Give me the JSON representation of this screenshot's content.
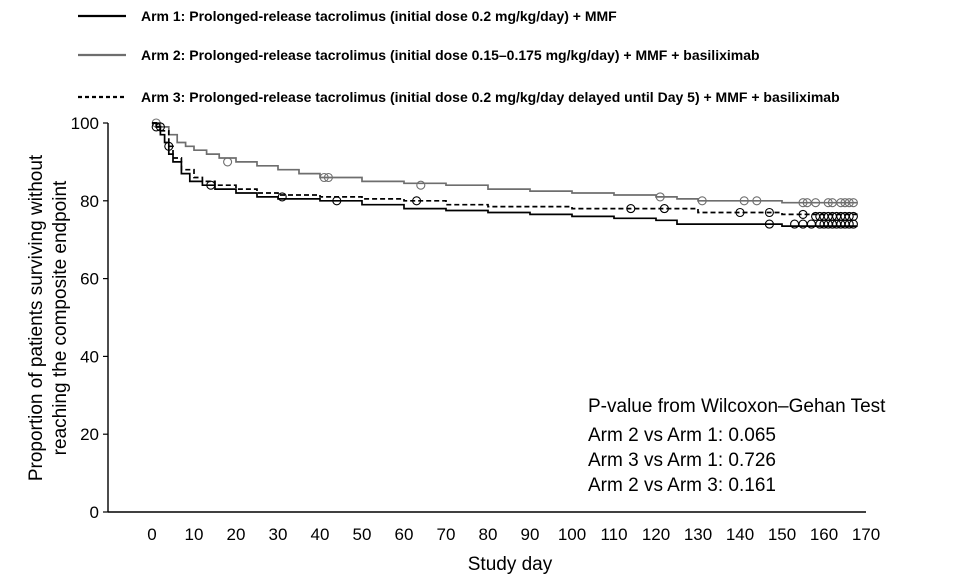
{
  "chart_data": {
    "type": "line",
    "subtype": "kaplan-meier",
    "xlabel": "Study day",
    "ylabel": [
      "Proportion of patients surviving without",
      "reaching the composite endpoint"
    ],
    "xlim": [
      0,
      170
    ],
    "ylim": [
      0,
      100
    ],
    "xticks": [
      0,
      10,
      20,
      30,
      40,
      50,
      60,
      70,
      80,
      90,
      100,
      110,
      120,
      130,
      140,
      150,
      160,
      170
    ],
    "yticks": [
      0,
      20,
      40,
      60,
      80,
      100
    ],
    "grid": false,
    "legend_position": "top-left",
    "series": [
      {
        "name": "Arm 1: Prolonged-release tacrolimus (initial dose 0.2 mg/kg/day) + MMF",
        "color": "#000000",
        "line_style": "solid",
        "points": [
          [
            0,
            100
          ],
          [
            1,
            99
          ],
          [
            2,
            97
          ],
          [
            3,
            95
          ],
          [
            4,
            92
          ],
          [
            5,
            90
          ],
          [
            7,
            87
          ],
          [
            9,
            85
          ],
          [
            12,
            84
          ],
          [
            15,
            83
          ],
          [
            20,
            82
          ],
          [
            25,
            81
          ],
          [
            30,
            80.5
          ],
          [
            40,
            80
          ],
          [
            50,
            79
          ],
          [
            60,
            78
          ],
          [
            70,
            77.5
          ],
          [
            80,
            77
          ],
          [
            90,
            76.5
          ],
          [
            100,
            76
          ],
          [
            110,
            75.5
          ],
          [
            120,
            75
          ],
          [
            125,
            74
          ],
          [
            130,
            74
          ],
          [
            140,
            74
          ],
          [
            150,
            73.5
          ],
          [
            168,
            73.5
          ]
        ],
        "censored": [
          [
            1,
            99
          ],
          [
            4,
            94
          ],
          [
            31,
            81
          ],
          [
            44,
            80
          ],
          [
            147,
            74
          ],
          [
            153,
            74
          ],
          [
            155,
            74
          ],
          [
            157,
            74
          ],
          [
            159,
            74
          ],
          [
            160,
            74
          ],
          [
            161,
            74
          ],
          [
            162,
            74
          ],
          [
            163,
            74
          ],
          [
            164,
            74
          ],
          [
            165,
            74
          ],
          [
            166,
            74
          ],
          [
            167,
            74
          ]
        ]
      },
      {
        "name": "Arm 2: Prolonged-release tacrolimus (initial dose 0.15–0.175 mg/kg/day) + MMF + basiliximab",
        "color": "#6e6e6e",
        "line_style": "solid",
        "points": [
          [
            0,
            100
          ],
          [
            2,
            99
          ],
          [
            4,
            97
          ],
          [
            6,
            95
          ],
          [
            8,
            94
          ],
          [
            10,
            93
          ],
          [
            13,
            92
          ],
          [
            16,
            91
          ],
          [
            20,
            90
          ],
          [
            25,
            89
          ],
          [
            30,
            88
          ],
          [
            35,
            87
          ],
          [
            40,
            86
          ],
          [
            50,
            85
          ],
          [
            60,
            84.5
          ],
          [
            70,
            84
          ],
          [
            80,
            83
          ],
          [
            90,
            82.5
          ],
          [
            100,
            82
          ],
          [
            110,
            81.5
          ],
          [
            120,
            81
          ],
          [
            125,
            80.5
          ],
          [
            130,
            80
          ],
          [
            145,
            80
          ],
          [
            150,
            79.5
          ],
          [
            168,
            79.5
          ]
        ],
        "censored": [
          [
            1,
            100
          ],
          [
            18,
            90
          ],
          [
            41,
            86
          ],
          [
            42,
            86
          ],
          [
            64,
            84
          ],
          [
            121,
            81
          ],
          [
            131,
            80
          ],
          [
            141,
            80
          ],
          [
            144,
            80
          ],
          [
            155,
            79.5
          ],
          [
            156,
            79.5
          ],
          [
            158,
            79.5
          ],
          [
            161,
            79.5
          ],
          [
            162,
            79.5
          ],
          [
            164,
            79.5
          ],
          [
            165,
            79.5
          ],
          [
            166,
            79.5
          ],
          [
            167,
            79.5
          ]
        ]
      },
      {
        "name": "Arm 3: Prolonged-release tacrolimus (initial dose 0.2 mg/kg/day delayed until Day 5) + MMF + basiliximab",
        "color": "#000000",
        "line_style": "dashed",
        "points": [
          [
            0,
            100
          ],
          [
            1,
            99
          ],
          [
            2,
            98
          ],
          [
            4,
            94
          ],
          [
            5,
            91
          ],
          [
            7,
            88
          ],
          [
            10,
            86
          ],
          [
            12,
            85
          ],
          [
            15,
            84
          ],
          [
            20,
            83
          ],
          [
            25,
            82
          ],
          [
            30,
            81.5
          ],
          [
            40,
            81
          ],
          [
            50,
            80.5
          ],
          [
            60,
            80
          ],
          [
            70,
            79
          ],
          [
            80,
            78.5
          ],
          [
            90,
            78.5
          ],
          [
            100,
            78
          ],
          [
            110,
            78
          ],
          [
            120,
            78
          ],
          [
            130,
            77
          ],
          [
            140,
            77
          ],
          [
            150,
            76.5
          ],
          [
            168,
            76
          ]
        ],
        "censored": [
          [
            2,
            99
          ],
          [
            14,
            84
          ],
          [
            63,
            80
          ],
          [
            114,
            78
          ],
          [
            122,
            78
          ],
          [
            140,
            77
          ],
          [
            147,
            77
          ],
          [
            155,
            76.5
          ],
          [
            158,
            76
          ],
          [
            159,
            76
          ],
          [
            160,
            76
          ],
          [
            161,
            76
          ],
          [
            162,
            76
          ],
          [
            163,
            76
          ],
          [
            164,
            76
          ],
          [
            165,
            76
          ],
          [
            166,
            76
          ],
          [
            167,
            76
          ]
        ]
      }
    ],
    "annotation": {
      "lines": [
        "P-value from Wilcoxon–Gehan Test",
        "Arm 2 vs Arm 1: 0.065",
        "Arm 3 vs Arm 1: 0.726",
        "Arm 2 vs Arm 3: 0.161"
      ]
    }
  }
}
